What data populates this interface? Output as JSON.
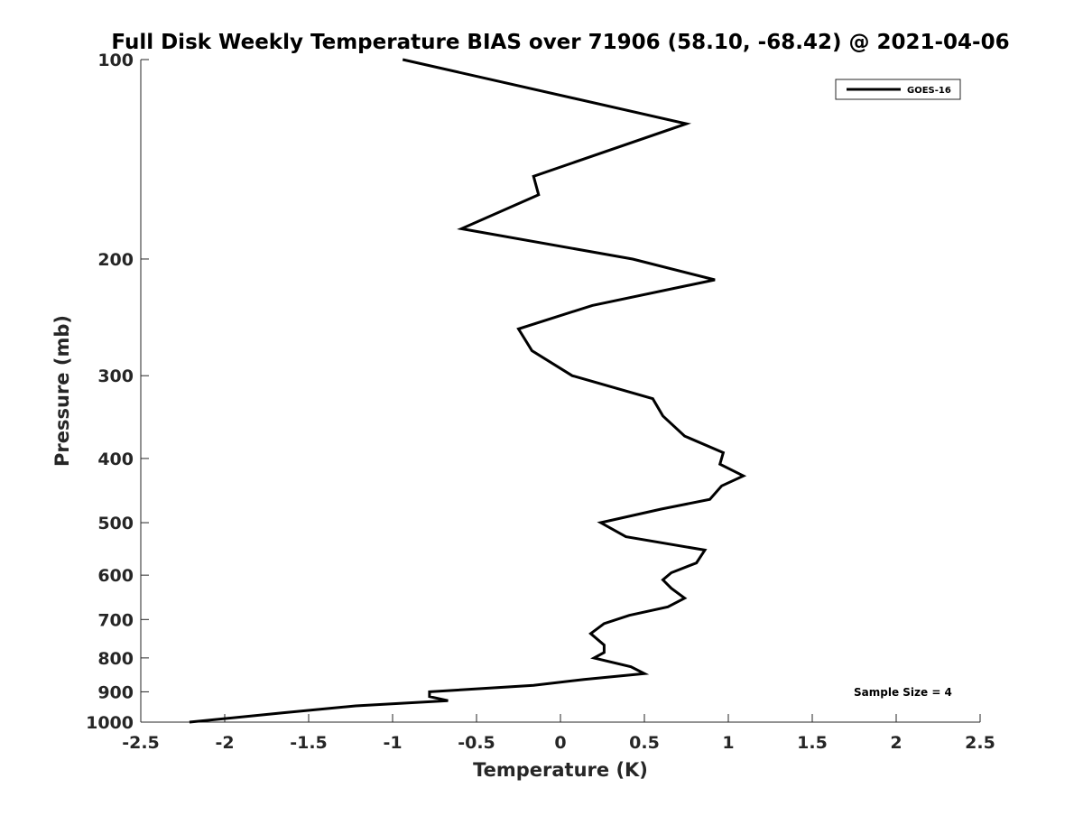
{
  "chart_data": {
    "type": "line",
    "title": "Full Disk Weekly Temperature BIAS over 71906 (58.10, -68.42) @ 2021-04-06",
    "xlabel": "Temperature (K)",
    "ylabel": "Pressure (mb)",
    "xlim": [
      -2.5,
      2.5
    ],
    "ylim": [
      100,
      1000
    ],
    "y_scale": "log",
    "y_reversed": true,
    "x_ticks": [
      "-2.5",
      "-2",
      "-1.5",
      "-1",
      "-0.5",
      "0",
      "0.5",
      "1",
      "1.5",
      "2",
      "2.5"
    ],
    "y_ticks": [
      "100",
      "200",
      "300",
      "400",
      "500",
      "600",
      "700",
      "800",
      "900",
      "1000"
    ],
    "grid": false,
    "legend_position": "top-right",
    "series": [
      {
        "name": "GOES-16",
        "color": "#000000",
        "points": [
          {
            "x": -0.94,
            "p": 100
          },
          {
            "x": 0.75,
            "p": 125
          },
          {
            "x": -0.16,
            "p": 150
          },
          {
            "x": -0.13,
            "p": 160
          },
          {
            "x": -0.59,
            "p": 180
          },
          {
            "x": 0.43,
            "p": 200
          },
          {
            "x": 0.92,
            "p": 215
          },
          {
            "x": 0.19,
            "p": 235
          },
          {
            "x": -0.25,
            "p": 255
          },
          {
            "x": -0.17,
            "p": 275
          },
          {
            "x": 0.07,
            "p": 300
          },
          {
            "x": 0.55,
            "p": 325
          },
          {
            "x": 0.61,
            "p": 345
          },
          {
            "x": 0.74,
            "p": 370
          },
          {
            "x": 0.97,
            "p": 392
          },
          {
            "x": 0.95,
            "p": 408
          },
          {
            "x": 1.09,
            "p": 425
          },
          {
            "x": 0.96,
            "p": 440
          },
          {
            "x": 0.89,
            "p": 461
          },
          {
            "x": 0.6,
            "p": 477
          },
          {
            "x": 0.24,
            "p": 500
          },
          {
            "x": 0.39,
            "p": 525
          },
          {
            "x": 0.86,
            "p": 550
          },
          {
            "x": 0.81,
            "p": 575
          },
          {
            "x": 0.66,
            "p": 595
          },
          {
            "x": 0.61,
            "p": 610
          },
          {
            "x": 0.66,
            "p": 628
          },
          {
            "x": 0.74,
            "p": 650
          },
          {
            "x": 0.64,
            "p": 670
          },
          {
            "x": 0.41,
            "p": 690
          },
          {
            "x": 0.26,
            "p": 710
          },
          {
            "x": 0.18,
            "p": 735
          },
          {
            "x": 0.26,
            "p": 765
          },
          {
            "x": 0.26,
            "p": 785
          },
          {
            "x": 0.2,
            "p": 800
          },
          {
            "x": 0.42,
            "p": 825
          },
          {
            "x": 0.5,
            "p": 845
          },
          {
            "x": 0.14,
            "p": 862
          },
          {
            "x": -0.16,
            "p": 880
          },
          {
            "x": -0.78,
            "p": 900
          },
          {
            "x": -0.78,
            "p": 915
          },
          {
            "x": -0.67,
            "p": 928
          },
          {
            "x": -1.22,
            "p": 945
          },
          {
            "x": -1.65,
            "p": 968
          },
          {
            "x": -2.21,
            "p": 1000
          }
        ]
      }
    ],
    "annotations": [
      "Sample Size = 4"
    ]
  }
}
